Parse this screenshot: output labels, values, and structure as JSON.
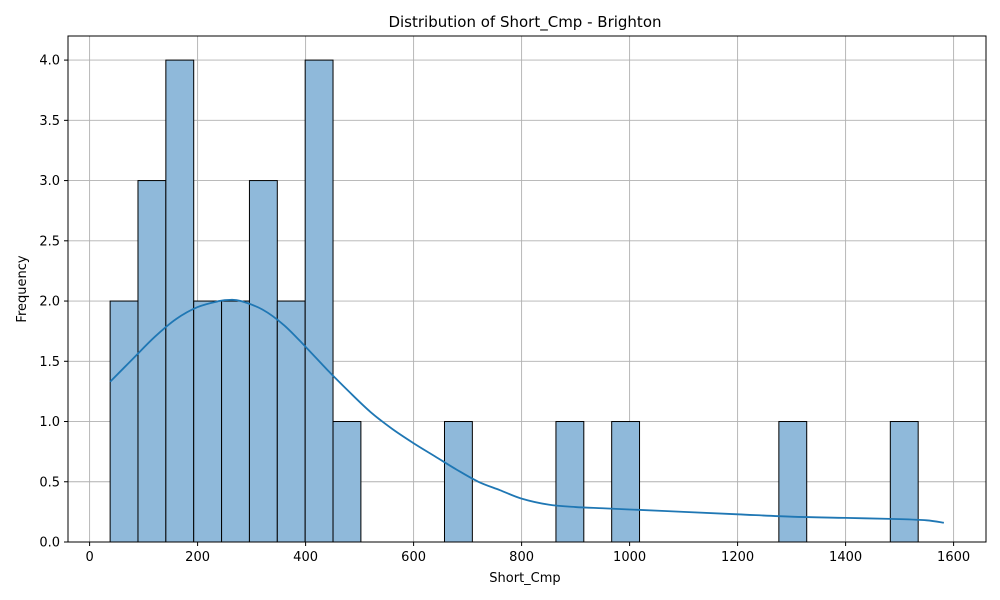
{
  "chart_data": {
    "type": "bar",
    "title": "Distribution of Short_Cmp - Brighton",
    "xlabel": "Short_Cmp",
    "ylabel": "Frequency",
    "xlim": [
      -40,
      1660
    ],
    "ylim": [
      0,
      4.2
    ],
    "xticks": [
      0,
      200,
      400,
      600,
      800,
      1000,
      1200,
      1400,
      1600
    ],
    "yticks": [
      0.0,
      0.5,
      1.0,
      1.5,
      2.0,
      2.5,
      3.0,
      3.5,
      4.0
    ],
    "xtick_labels": [
      "0",
      "200",
      "400",
      "600",
      "800",
      "1000",
      "1200",
      "1400",
      "1600"
    ],
    "ytick_labels": [
      "0.0",
      "0.5",
      "1.0",
      "1.5",
      "2.0",
      "2.5",
      "3.0",
      "3.5",
      "4.0"
    ],
    "bin_start": 38,
    "bin_width": 51.6,
    "counts": [
      2,
      3,
      4,
      2,
      2,
      3,
      2,
      4,
      1,
      0,
      0,
      0,
      1,
      0,
      0,
      0,
      1,
      0,
      1,
      0,
      0,
      0,
      0,
      0,
      1,
      0,
      0,
      0,
      1
    ],
    "kde": {
      "x": [
        38,
        80,
        120,
        160,
        200,
        240,
        260,
        280,
        320,
        360,
        400,
        440,
        480,
        520,
        560,
        600,
        640,
        680,
        720,
        760,
        800,
        850,
        900,
        950,
        1000,
        1100,
        1200,
        1300,
        1400,
        1500,
        1550,
        1582
      ],
      "y": [
        1.33,
        1.52,
        1.7,
        1.85,
        1.95,
        2.0,
        2.01,
        2.0,
        1.93,
        1.8,
        1.62,
        1.43,
        1.25,
        1.08,
        0.94,
        0.82,
        0.71,
        0.6,
        0.5,
        0.43,
        0.36,
        0.31,
        0.29,
        0.28,
        0.27,
        0.25,
        0.23,
        0.21,
        0.2,
        0.19,
        0.18,
        0.16
      ]
    },
    "grid": true,
    "bar_color": "#8fb9da",
    "bar_edge_color": "#000000",
    "line_color": "#1f77b4"
  }
}
